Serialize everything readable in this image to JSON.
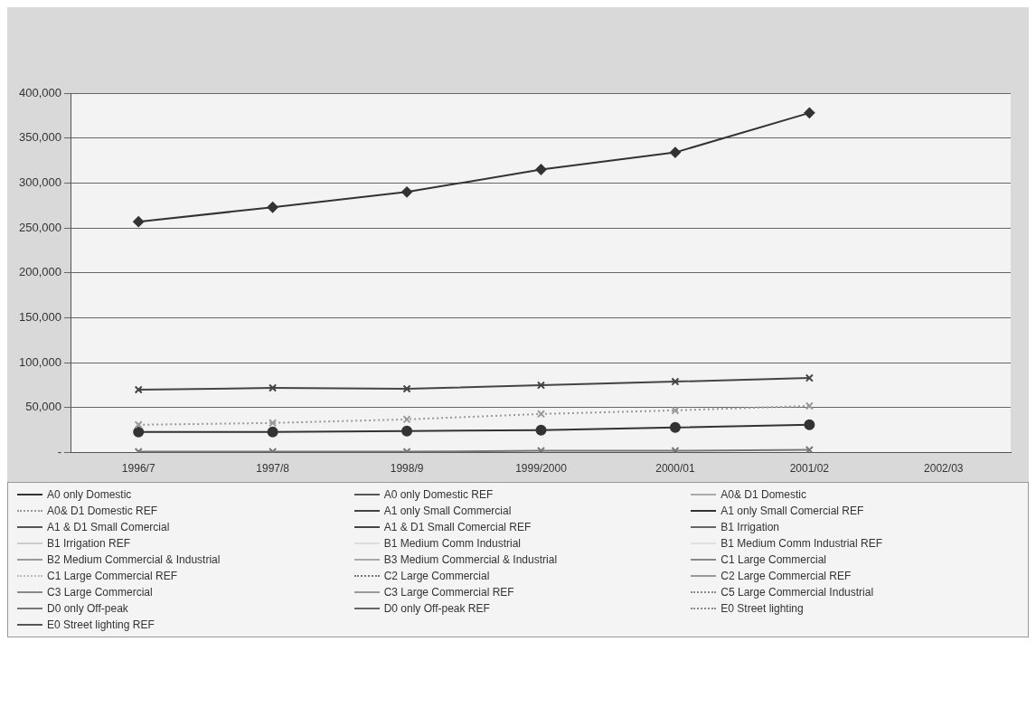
{
  "chart_data": {
    "type": "line",
    "categories": [
      "1996/7",
      "1997/8",
      "1998/9",
      "1999/2000",
      "2000/01",
      "2001/02",
      "2002/03"
    ],
    "ylim": [
      0,
      400000
    ],
    "yticks": [
      {
        "value": 0,
        "label": "-"
      },
      {
        "value": 50000,
        "label": "50,000"
      },
      {
        "value": 100000,
        "label": "100,000"
      },
      {
        "value": 150000,
        "label": "150,000"
      },
      {
        "value": 200000,
        "label": "200,000"
      },
      {
        "value": 250000,
        "label": "250,000"
      },
      {
        "value": 300000,
        "label": "300,000"
      },
      {
        "value": 350000,
        "label": "350,000"
      },
      {
        "value": 400000,
        "label": "400,000"
      }
    ],
    "grid": "y",
    "legend": "bottom",
    "series": [
      {
        "name": "A0 only Domestic",
        "color": "#333333",
        "marker": "diamond",
        "line_style": "solid",
        "values": [
          257000,
          273000,
          290000,
          315000,
          334000,
          378000,
          null
        ]
      },
      {
        "name": "A0 only Domestic REF",
        "color": "#555555",
        "marker": "square",
        "line_style": "solid",
        "values": [
          null,
          null,
          null,
          null,
          null,
          null,
          null
        ]
      },
      {
        "name": "A0& D1 Domestic",
        "color": "#aaaaaa",
        "marker": "triangle",
        "line_style": "solid",
        "values": [
          null,
          null,
          null,
          null,
          null,
          null,
          null
        ]
      },
      {
        "name": "A0& D1 Domestic REF",
        "color": "#999999",
        "marker": "cross",
        "line_style": "dotted",
        "values": [
          31000,
          33000,
          37000,
          43000,
          47000,
          52000,
          null
        ]
      },
      {
        "name": "A1 only Small Commercial",
        "color": "#444444",
        "marker": "cross",
        "line_style": "solid",
        "values": [
          70000,
          72000,
          71000,
          75000,
          79000,
          83000,
          null
        ]
      },
      {
        "name": "A1 only Small Comercial REF",
        "color": "#333333",
        "marker": "circle",
        "line_style": "solid",
        "values": [
          23000,
          23000,
          24000,
          25000,
          28000,
          31000,
          null
        ]
      },
      {
        "name": "A1 & D1 Small Comercial",
        "color": "#555555",
        "marker": "cross",
        "line_style": "solid",
        "values": [
          null,
          null,
          null,
          null,
          null,
          null,
          null
        ]
      },
      {
        "name": "A1 & D1 Small Comercial REF",
        "color": "#444444",
        "marker": "none",
        "line_style": "solid",
        "values": [
          null,
          null,
          null,
          null,
          null,
          null,
          null
        ]
      },
      {
        "name": "B1 Irrigation",
        "color": "#666666",
        "marker": "none",
        "line_style": "solid",
        "values": [
          null,
          null,
          null,
          null,
          null,
          null,
          null
        ]
      },
      {
        "name": "B1 Irrigation REF",
        "color": "#cccccc",
        "marker": "none",
        "line_style": "solid",
        "values": [
          null,
          null,
          null,
          null,
          null,
          null,
          null
        ]
      },
      {
        "name": "B1 Medium Comm  Industrial",
        "color": "#dddddd",
        "marker": "circle",
        "line_style": "solid",
        "values": [
          null,
          null,
          null,
          null,
          null,
          null,
          null
        ]
      },
      {
        "name": "B1 Medium Comm  Industrial REF",
        "color": "#e0e0e0",
        "marker": "none",
        "line_style": "solid",
        "values": [
          null,
          null,
          null,
          null,
          null,
          null,
          null
        ]
      },
      {
        "name": "B2 Medium Commercial & Industrial",
        "color": "#999999",
        "marker": "cross",
        "line_style": "solid",
        "values": [
          null,
          null,
          null,
          null,
          null,
          null,
          null
        ]
      },
      {
        "name": "B3 Medium Commercial & Industrial",
        "color": "#aaaaaa",
        "marker": "star",
        "line_style": "solid",
        "values": [
          null,
          null,
          null,
          null,
          null,
          null,
          null
        ]
      },
      {
        "name": "C1 Large Commercial",
        "color": "#888888",
        "marker": "triangle",
        "line_style": "solid",
        "values": [
          null,
          null,
          null,
          null,
          null,
          null,
          null
        ]
      },
      {
        "name": "C1 Large Commercial REF",
        "color": "#bbbbbb",
        "marker": "cross",
        "line_style": "dotted",
        "values": [
          null,
          null,
          null,
          null,
          null,
          null,
          null
        ]
      },
      {
        "name": "C2 Large Commercial",
        "color": "#777777",
        "marker": "none",
        "line_style": "dotted",
        "values": [
          null,
          null,
          null,
          null,
          null,
          null,
          null
        ]
      },
      {
        "name": "C2 Large Commercial REF",
        "color": "#999999",
        "marker": "none",
        "line_style": "solid",
        "values": [
          null,
          null,
          null,
          null,
          null,
          null,
          null
        ]
      },
      {
        "name": "C3 Large Commercial",
        "color": "#888888",
        "marker": "diamond",
        "line_style": "solid",
        "values": [
          null,
          null,
          null,
          null,
          null,
          null,
          null
        ]
      },
      {
        "name": "C3 Large Commercial REF",
        "color": "#999999",
        "marker": "star",
        "line_style": "solid",
        "values": [
          null,
          null,
          null,
          null,
          null,
          null,
          null
        ]
      },
      {
        "name": "C5 Large Commercial Industrial",
        "color": "#888888",
        "marker": "star",
        "line_style": "dotted",
        "values": [
          null,
          null,
          null,
          null,
          null,
          null,
          null
        ]
      },
      {
        "name": "D0 only Off-peak",
        "color": "#777777",
        "marker": "cross",
        "line_style": "solid",
        "values": [
          1000,
          1000,
          1000,
          2000,
          2000,
          3000,
          null
        ]
      },
      {
        "name": "D0 only Off-peak REF",
        "color": "#666666",
        "marker": "square",
        "line_style": "solid",
        "values": [
          null,
          null,
          null,
          null,
          null,
          null,
          null
        ]
      },
      {
        "name": "E0 Street lighting",
        "color": "#888888",
        "marker": "diamond",
        "line_style": "dotted",
        "values": [
          null,
          null,
          null,
          null,
          null,
          null,
          null
        ]
      },
      {
        "name": "E0 Street lighting REF",
        "color": "#555555",
        "marker": "cross",
        "line_style": "solid",
        "values": [
          null,
          null,
          null,
          null,
          null,
          null,
          null
        ]
      }
    ]
  }
}
